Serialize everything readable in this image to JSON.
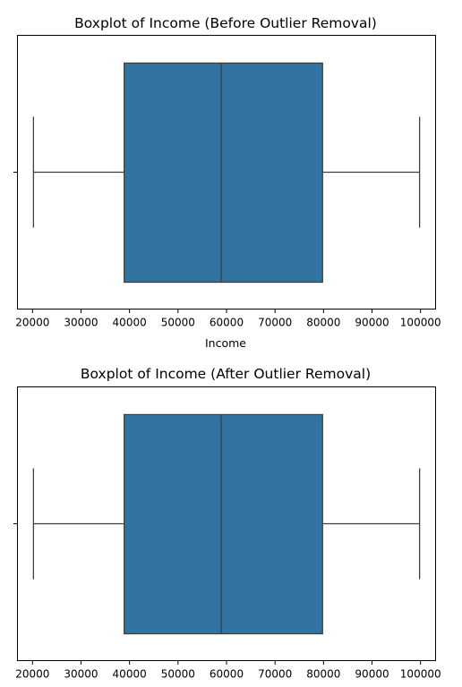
{
  "chart_data": [
    {
      "type": "boxplot",
      "title": "Boxplot of Income (Before Outlier Removal)",
      "xlabel": "Income",
      "ylabel": "",
      "xlim": [
        16900,
        103100
      ],
      "xticks": [
        20000,
        30000,
        40000,
        50000,
        60000,
        70000,
        80000,
        90000,
        100000
      ],
      "grid": false,
      "box": {
        "min": 20200,
        "q1": 38900,
        "median": 58900,
        "q3": 79800,
        "max": 99800
      },
      "box_color": "#3274a1",
      "line_color": "#3f3f3f"
    },
    {
      "type": "boxplot",
      "title": "Boxplot of Income (After Outlier Removal)",
      "xlabel": "",
      "ylabel": "",
      "xlim": [
        16900,
        103100
      ],
      "xticks": [
        20000,
        30000,
        40000,
        50000,
        60000,
        70000,
        80000,
        90000,
        100000
      ],
      "grid": false,
      "box": {
        "min": 20200,
        "q1": 38900,
        "median": 58900,
        "q3": 79800,
        "max": 99800
      },
      "box_color": "#3274a1",
      "line_color": "#3f3f3f"
    }
  ]
}
